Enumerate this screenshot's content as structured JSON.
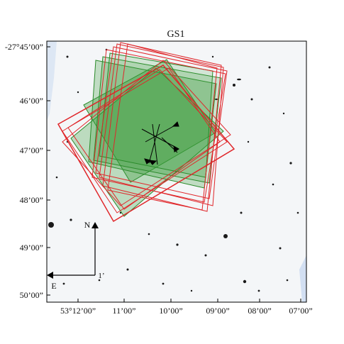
{
  "title": "GS1",
  "y_axis": {
    "tick_labels": [
      "-27°45’00”",
      "46’00”",
      "47’00”",
      "48’00”",
      "49’00”",
      "50’00”"
    ]
  },
  "x_axis": {
    "tick_labels": [
      "53°12’00”",
      "11’00”",
      "10’00”",
      "09’00”",
      "08’00”",
      "07’00”"
    ]
  },
  "compass": {
    "north": "N",
    "east": "E",
    "scale": "1’"
  },
  "colors": {
    "red_footprints": "#e0262a",
    "green_footprints": "#2a8a2a",
    "green_fill": "#3a9a3a",
    "sky": "#f4f6f8",
    "stars": "#1a1a1a"
  }
}
